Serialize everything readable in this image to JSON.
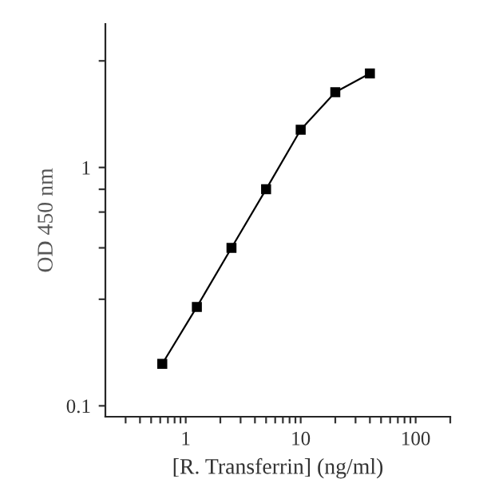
{
  "chart_data": {
    "type": "line",
    "xlabel": "[R. Transferrin] (ng/ml)",
    "ylabel": "OD 450 nm",
    "log": "xy",
    "grid": false,
    "marker": "square",
    "line_style": "solid",
    "x": [
      0.625,
      1.25,
      2.5,
      5,
      10,
      20,
      40
    ],
    "series": [
      {
        "color": "#000000",
        "values": [
          0.15,
          0.26,
          0.46,
          0.81,
          1.44,
          2.07,
          2.48
        ]
      }
    ],
    "xlim": [
      0.2,
      200
    ],
    "ylim": [
      0.09,
      4
    ],
    "xticks": [
      {
        "value": 0.3,
        "label": null
      },
      {
        "value": 0.4,
        "label": null
      },
      {
        "value": 0.5,
        "label": null
      },
      {
        "value": 0.6,
        "label": null
      },
      {
        "value": 0.7,
        "label": null
      },
      {
        "value": 0.8,
        "label": null
      },
      {
        "value": 0.9,
        "label": null
      },
      1,
      {
        "value": 2,
        "label": null
      },
      {
        "value": 3,
        "label": null
      },
      {
        "value": 4,
        "label": null
      },
      {
        "value": 5,
        "label": null
      },
      {
        "value": 6,
        "label": null
      },
      {
        "value": 7,
        "label": null
      },
      {
        "value": 8,
        "label": null
      },
      {
        "value": 9,
        "label": null
      },
      10,
      {
        "value": 20,
        "label": null
      },
      {
        "value": 30,
        "label": null
      },
      {
        "value": 40,
        "label": null
      },
      {
        "value": 50,
        "label": null
      },
      {
        "value": 60,
        "label": null
      },
      {
        "value": 70,
        "label": null
      },
      {
        "value": 80,
        "label": null
      },
      {
        "value": 90,
        "label": null
      },
      100,
      {
        "value": 200,
        "label": null
      }
    ],
    "yticks": [
      0.1,
      {
        "value": 0.28,
        "label": null
      },
      {
        "value": 0.46,
        "label": null
      },
      {
        "value": 0.65,
        "label": null
      },
      {
        "value": 0.81,
        "label": null
      },
      1,
      {
        "value": 2.8,
        "label": null
      }
    ]
  }
}
